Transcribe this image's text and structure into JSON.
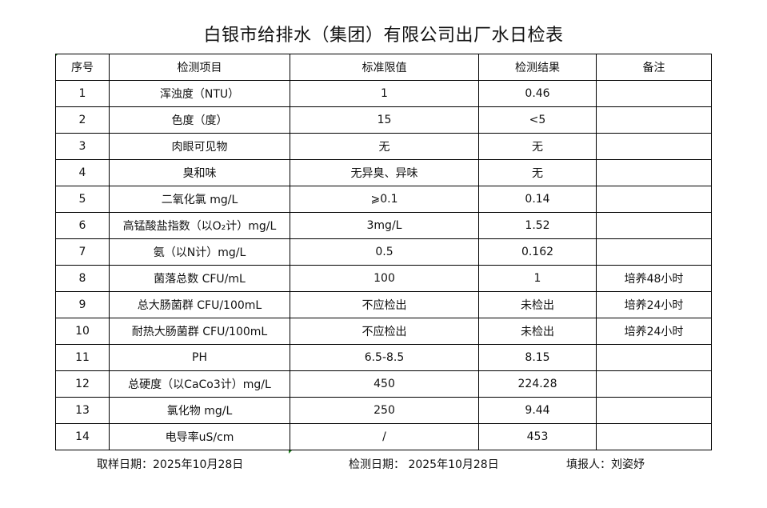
{
  "title": "白银市给排水（集团）有限公司出厂水日检表",
  "headers": [
    "序号",
    "检测项目",
    "标准限值",
    "检测结果",
    "备注"
  ],
  "rows": [
    [
      "1",
      "浑浊度（NTU）",
      "1",
      "0.46",
      ""
    ],
    [
      "2",
      "色度（度）",
      "15",
      "<5",
      ""
    ],
    [
      "3",
      "肉眼可见物",
      "无",
      "无",
      ""
    ],
    [
      "4",
      "臭和味",
      "无异臭、异味",
      "无",
      ""
    ],
    [
      "5",
      "二氧化氯 mg/L",
      "⩾0.1",
      "0.14",
      ""
    ],
    [
      "6",
      "高锰酸盐指数（以O₂计）mg/L",
      "3mg/L",
      "1.52",
      ""
    ],
    [
      "7",
      "氨（以N计）mg/L",
      "0.5",
      "0.162",
      ""
    ],
    [
      "8",
      "菌落总数 CFU/mL",
      "100",
      "1",
      "培养48小时"
    ],
    [
      "9",
      "总大肠菌群 CFU/100mL",
      "不应检出",
      "未检出",
      "培养24小时"
    ],
    [
      "10",
      "耐热大肠菌群 CFU/100mL",
      "不应检出",
      "未检出",
      "培养24小时"
    ],
    [
      "11",
      "PH",
      "6.5-8.5",
      "8.15",
      ""
    ],
    [
      "12",
      "总硬度（以CaCo3计）mg/L",
      "450",
      "224.28",
      ""
    ],
    [
      "13",
      "氯化物 mg/L",
      "250",
      "9.44",
      ""
    ],
    [
      "14",
      "电导率uS/cm",
      "/",
      "453",
      ""
    ]
  ],
  "footer": {
    "sample_date": "取样日期：2025年10月28日",
    "test_date": "检测日期： 2025年10月28日",
    "reporter": "填报人：刘姿妤"
  }
}
